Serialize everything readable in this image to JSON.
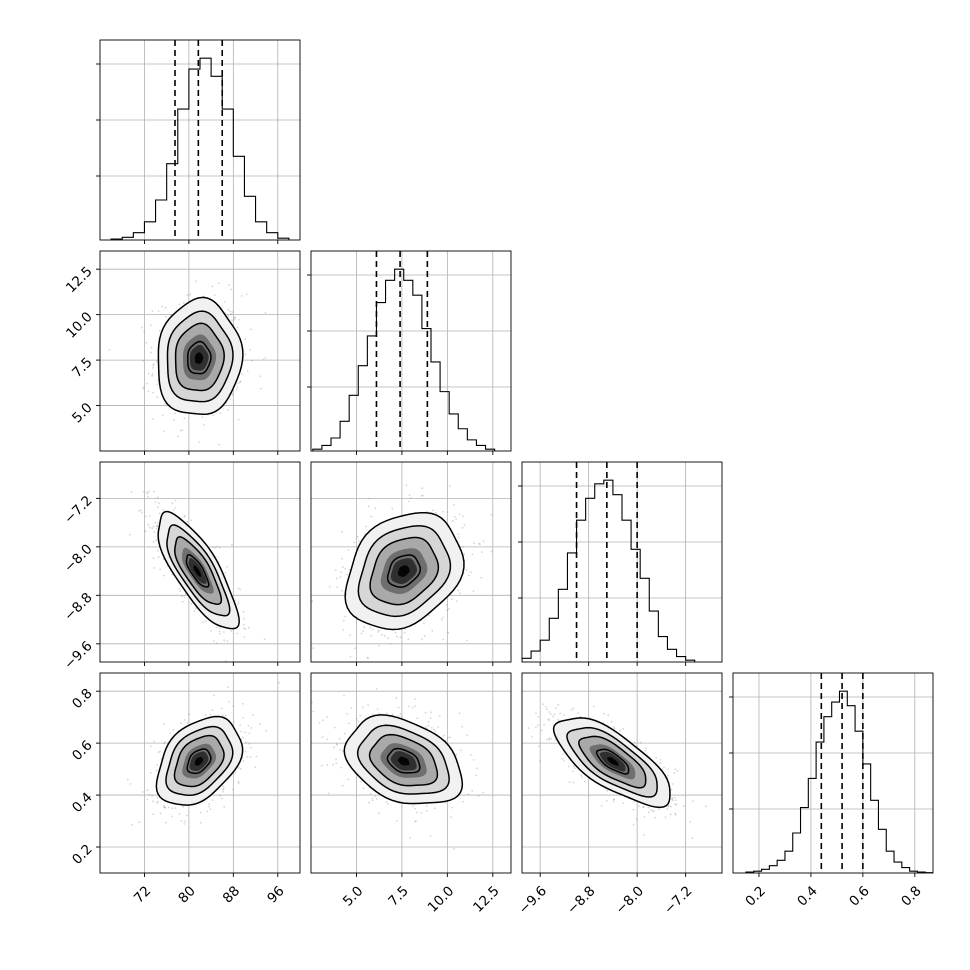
{
  "chart_data": {
    "type": "corner",
    "title": "",
    "parameters": [
      {
        "range": [
          64,
          100
        ],
        "ticks": [
          72,
          80,
          88,
          96
        ],
        "tick_labels": [
          "72",
          "80",
          "88",
          "96"
        ],
        "quantiles": [
          77.5,
          81.7,
          86.0
        ],
        "hist": {
          "edges": [
            66,
            68,
            70,
            72,
            74,
            76,
            78,
            80,
            82,
            84,
            86,
            88,
            90,
            92,
            94,
            96,
            98
          ],
          "counts": [
            0.5,
            1.5,
            4,
            10,
            22,
            42,
            72,
            94,
            100,
            90,
            72,
            46,
            24,
            10,
            4,
            1
          ]
        }
      },
      {
        "range": [
          2.5,
          13.5
        ],
        "ticks": [
          5.0,
          7.5,
          10.0,
          12.5
        ],
        "tick_labels": [
          "5.0",
          "7.5",
          "10.0",
          "12.5"
        ],
        "quantiles": [
          6.1,
          7.4,
          8.9
        ],
        "hist": {
          "edges": [
            2.6,
            3.1,
            3.6,
            4.1,
            4.6,
            5.1,
            5.6,
            6.1,
            6.6,
            7.1,
            7.6,
            8.1,
            8.6,
            9.1,
            9.6,
            10.1,
            10.6,
            11.1,
            11.6,
            12.1,
            12.6
          ],
          "counts": [
            1,
            3,
            7,
            16,
            30,
            46,
            62,
            80,
            92,
            98,
            92,
            84,
            66,
            48,
            32,
            20,
            12,
            6,
            3,
            1
          ]
        }
      },
      {
        "range": [
          -9.9,
          -6.6
        ],
        "ticks": [
          -9.6,
          -8.8,
          -8.0,
          -7.2
        ],
        "tick_labels": [
          "−9.6",
          "−8.8",
          "−8.0",
          "−7.2"
        ],
        "quantiles": [
          -9.0,
          -8.5,
          -8.0
        ],
        "hist": {
          "edges": [
            -9.9,
            -9.75,
            -9.6,
            -9.45,
            -9.3,
            -9.15,
            -9.0,
            -8.85,
            -8.7,
            -8.55,
            -8.4,
            -8.25,
            -8.1,
            -7.95,
            -7.8,
            -7.65,
            -7.5,
            -7.35,
            -7.2,
            -7.05
          ],
          "counts": [
            2,
            6,
            12,
            24,
            40,
            60,
            78,
            90,
            98,
            100,
            92,
            78,
            62,
            46,
            28,
            14,
            7,
            3,
            1
          ]
        }
      },
      {
        "range": [
          0.1,
          0.87
        ],
        "ticks": [
          0.2,
          0.4,
          0.6,
          0.8
        ],
        "tick_labels": [
          "0.2",
          "0.4",
          "0.6",
          "0.8"
        ],
        "quantiles": [
          0.44,
          0.52,
          0.6
        ],
        "hist": {
          "edges": [
            0.15,
            0.18,
            0.21,
            0.24,
            0.27,
            0.3,
            0.33,
            0.36,
            0.39,
            0.42,
            0.45,
            0.48,
            0.51,
            0.54,
            0.57,
            0.6,
            0.63,
            0.66,
            0.69,
            0.72,
            0.75,
            0.78,
            0.81,
            0.84,
            0.87
          ],
          "counts": [
            0.5,
            1,
            2,
            4,
            7,
            12,
            22,
            36,
            52,
            72,
            86,
            94,
            100,
            92,
            78,
            60,
            40,
            24,
            12,
            6,
            3,
            1,
            0.5,
            0.2
          ]
        }
      }
    ],
    "pairs": [
      {
        "row": 1,
        "col": 0,
        "center": [
          81.8,
          7.6
        ],
        "sd": [
          3.8,
          1.6
        ],
        "corr": 0.05
      },
      {
        "row": 2,
        "col": 0,
        "center": [
          81.5,
          -8.4
        ],
        "sd": [
          3.6,
          0.48
        ],
        "corr": -0.78
      },
      {
        "row": 2,
        "col": 1,
        "center": [
          7.6,
          -8.4
        ],
        "sd": [
          1.6,
          0.48
        ],
        "corr": 0.25
      },
      {
        "row": 3,
        "col": 0,
        "center": [
          81.8,
          0.53
        ],
        "sd": [
          3.8,
          0.085
        ],
        "corr": 0.38
      },
      {
        "row": 3,
        "col": 1,
        "center": [
          7.6,
          0.53
        ],
        "sd": [
          1.6,
          0.085
        ],
        "corr": -0.33
      },
      {
        "row": 3,
        "col": 2,
        "center": [
          -8.4,
          0.53
        ],
        "sd": [
          0.48,
          0.085
        ],
        "corr": -0.72
      }
    ]
  }
}
